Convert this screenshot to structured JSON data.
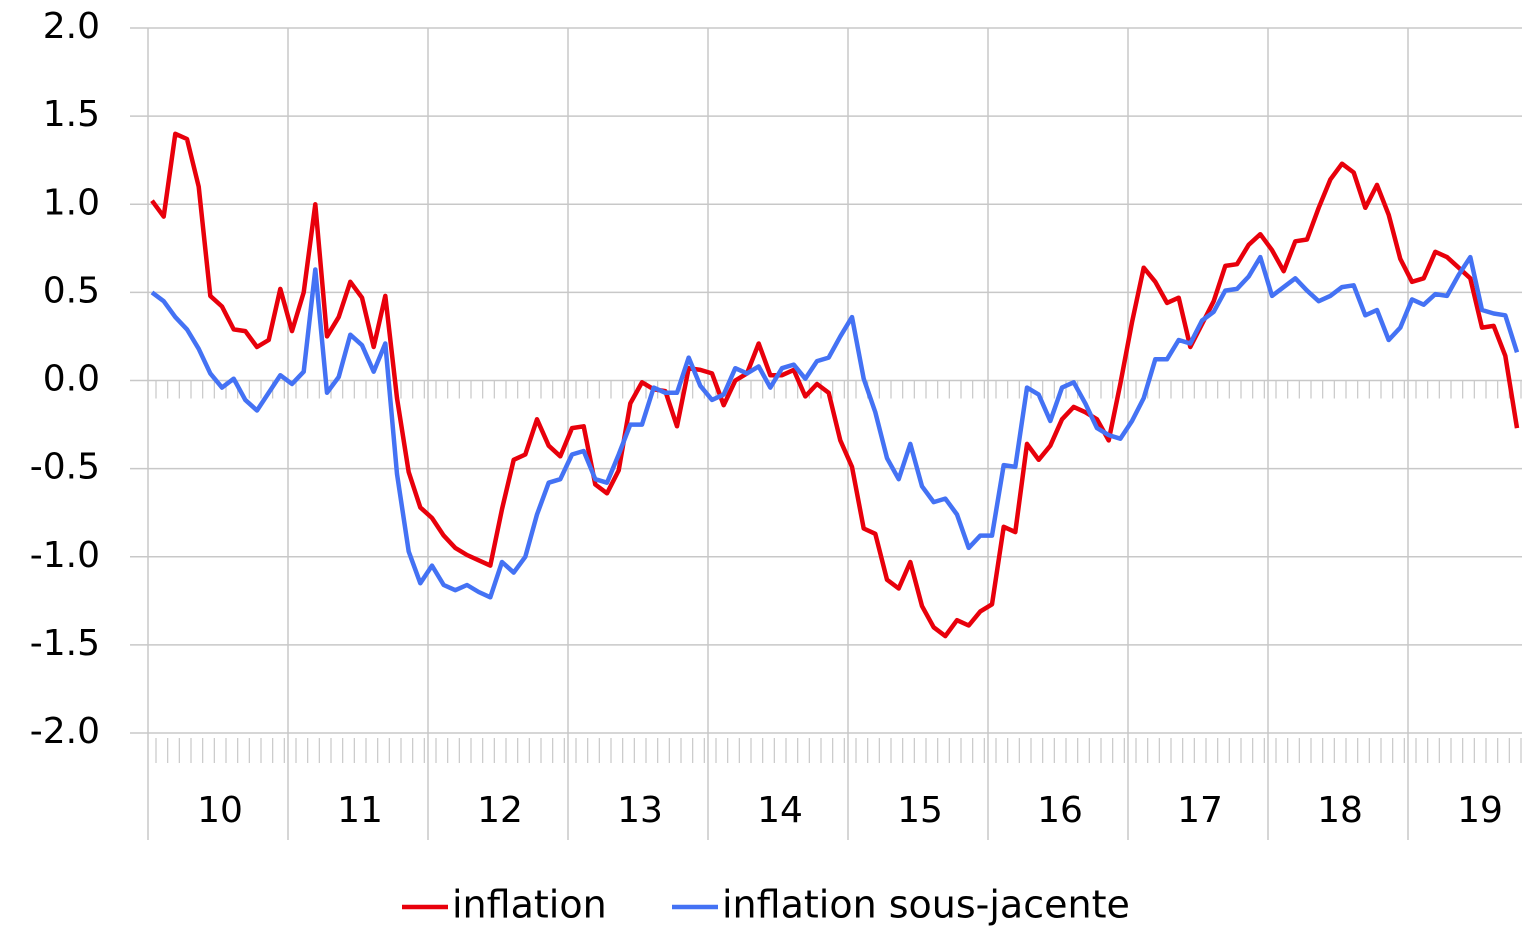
{
  "chart_data": {
    "type": "line",
    "groups": [
      "10",
      "11",
      "12",
      "13",
      "14",
      "15",
      "16",
      "17",
      "18",
      "19"
    ],
    "series": [
      {
        "name": "inflation",
        "color": "#e8000b",
        "values": [
          1.02,
          0.93,
          1.4,
          1.37,
          1.1,
          0.48,
          0.42,
          0.29,
          0.28,
          0.19,
          0.23,
          0.52,
          0.28,
          0.5,
          1.0,
          0.25,
          0.36,
          0.56,
          0.47,
          0.19,
          0.48,
          -0.1,
          -0.52,
          -0.72,
          -0.78,
          -0.88,
          -0.95,
          -0.99,
          -1.02,
          -1.05,
          -0.73,
          -0.45,
          -0.42,
          -0.22,
          -0.37,
          -0.43,
          -0.27,
          -0.26,
          -0.59,
          -0.64,
          -0.51,
          -0.13,
          -0.01,
          -0.05,
          -0.06,
          -0.26,
          0.07,
          0.06,
          0.04,
          -0.14,
          0.0,
          0.04,
          0.21,
          0.03,
          0.03,
          0.06,
          -0.09,
          -0.02,
          -0.07,
          -0.34,
          -0.49,
          -0.84,
          -0.87,
          -1.13,
          -1.18,
          -1.03,
          -1.28,
          -1.4,
          -1.45,
          -1.36,
          -1.39,
          -1.31,
          -1.27,
          -0.83,
          -0.86,
          -0.36,
          -0.45,
          -0.37,
          -0.22,
          -0.15,
          -0.18,
          -0.22,
          -0.34,
          -0.02,
          0.33,
          0.64,
          0.56,
          0.44,
          0.47,
          0.19,
          0.32,
          0.45,
          0.65,
          0.66,
          0.77,
          0.83,
          0.74,
          0.62,
          0.79,
          0.8,
          0.98,
          1.14,
          1.23,
          1.18,
          0.98,
          1.11,
          0.94,
          0.69,
          0.56,
          0.58,
          0.73,
          0.7,
          0.64,
          0.58,
          0.3,
          0.31,
          0.14,
          -0.27
        ]
      },
      {
        "name": "inflation sous-jacente",
        "color": "#4472f4",
        "values": [
          0.5,
          0.45,
          0.36,
          0.29,
          0.18,
          0.04,
          -0.04,
          0.01,
          -0.11,
          -0.17,
          -0.07,
          0.03,
          -0.02,
          0.05,
          0.63,
          -0.07,
          0.02,
          0.26,
          0.2,
          0.05,
          0.21,
          -0.53,
          -0.97,
          -1.15,
          -1.05,
          -1.16,
          -1.19,
          -1.16,
          -1.2,
          -1.23,
          -1.03,
          -1.09,
          -1.0,
          -0.76,
          -0.58,
          -0.56,
          -0.42,
          -0.4,
          -0.56,
          -0.58,
          -0.42,
          -0.25,
          -0.25,
          -0.04,
          -0.07,
          -0.07,
          0.13,
          -0.03,
          -0.11,
          -0.08,
          0.07,
          0.04,
          0.08,
          -0.04,
          0.07,
          0.09,
          0.01,
          0.11,
          0.13,
          0.25,
          0.36,
          0.01,
          -0.18,
          -0.44,
          -0.56,
          -0.36,
          -0.6,
          -0.69,
          -0.67,
          -0.76,
          -0.95,
          -0.88,
          -0.88,
          -0.48,
          -0.49,
          -0.04,
          -0.08,
          -0.23,
          -0.04,
          -0.01,
          -0.13,
          -0.27,
          -0.31,
          -0.33,
          -0.23,
          -0.1,
          0.12,
          0.12,
          0.23,
          0.21,
          0.34,
          0.39,
          0.51,
          0.52,
          0.59,
          0.7,
          0.48,
          0.53,
          0.58,
          0.51,
          0.45,
          0.48,
          0.53,
          0.54,
          0.37,
          0.4,
          0.23,
          0.3,
          0.46,
          0.43,
          0.49,
          0.48,
          0.6,
          0.7,
          0.4,
          0.38,
          0.37,
          0.16
        ]
      }
    ],
    "ylim": [
      -2,
      2
    ],
    "yticks": [
      {
        "value": 2,
        "label": "2.0"
      },
      {
        "value": 1.5,
        "label": "1.5"
      },
      {
        "value": 1,
        "label": "1.0"
      },
      {
        "value": 0.5,
        "label": "0.5"
      },
      {
        "value": 0,
        "label": "0.0"
      },
      {
        "value": -0.5,
        "label": "-0.5"
      },
      {
        "value": -1,
        "label": "-1.0"
      },
      {
        "value": -1.5,
        "label": "-1.5"
      },
      {
        "value": -2,
        "label": "-2.0"
      }
    ],
    "grid": true
  }
}
